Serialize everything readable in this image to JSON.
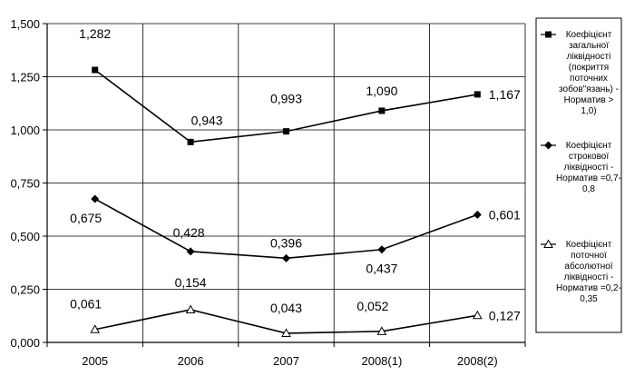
{
  "chart_data": {
    "type": "line",
    "categories": [
      "2005",
      "2006",
      "2007",
      "2008(1)",
      "2008(2)"
    ],
    "ylim": [
      0,
      1.5
    ],
    "yticks": [
      "0,000",
      "0,250",
      "0,500",
      "0,750",
      "1,000",
      "1,250",
      "1,500"
    ],
    "grid": true,
    "legend_position": "right",
    "series": [
      {
        "name": "Коефіцієнт загальної ліквідності (покриття поточних зобов\"язань) - Норматив > 1,0)",
        "legend_lines": [
          "Коефіцієнт",
          "загальної",
          "ліквідності",
          "(покриття",
          "поточних",
          "зобов\"язань) -",
          "Норматив >",
          "1,0)"
        ],
        "marker": "square",
        "values": [
          1.282,
          0.943,
          0.993,
          1.09,
          1.167
        ],
        "labels": [
          "1,282",
          "0,943",
          "0,993",
          "1,090",
          "1,167"
        ]
      },
      {
        "name": "Коефіцієнт строкової ліквідності - Норматив =0,7-0,8",
        "legend_lines": [
          "Коефіцієнт",
          "строкової",
          "ліквідності -",
          "Норматив =0,7-",
          "0,8"
        ],
        "marker": "diamond",
        "values": [
          0.675,
          0.428,
          0.396,
          0.437,
          0.601
        ],
        "labels": [
          "0,675",
          "0,428",
          "0,396",
          "0,437",
          "0,601"
        ]
      },
      {
        "name": "Коефіцієнт поточної абсолютної ліквідності - Норматив =0,2-0,35",
        "legend_lines": [
          "Коефіцієнт",
          "поточної",
          "абсолютної",
          "ліквідності -",
          "Норматив =0,2-",
          "0,35"
        ],
        "marker": "triangle-open",
        "values": [
          0.061,
          0.154,
          0.043,
          0.052,
          0.127
        ],
        "labels": [
          "0,061",
          "0,154",
          "0,043",
          "0,052",
          "0,127"
        ]
      }
    ]
  }
}
